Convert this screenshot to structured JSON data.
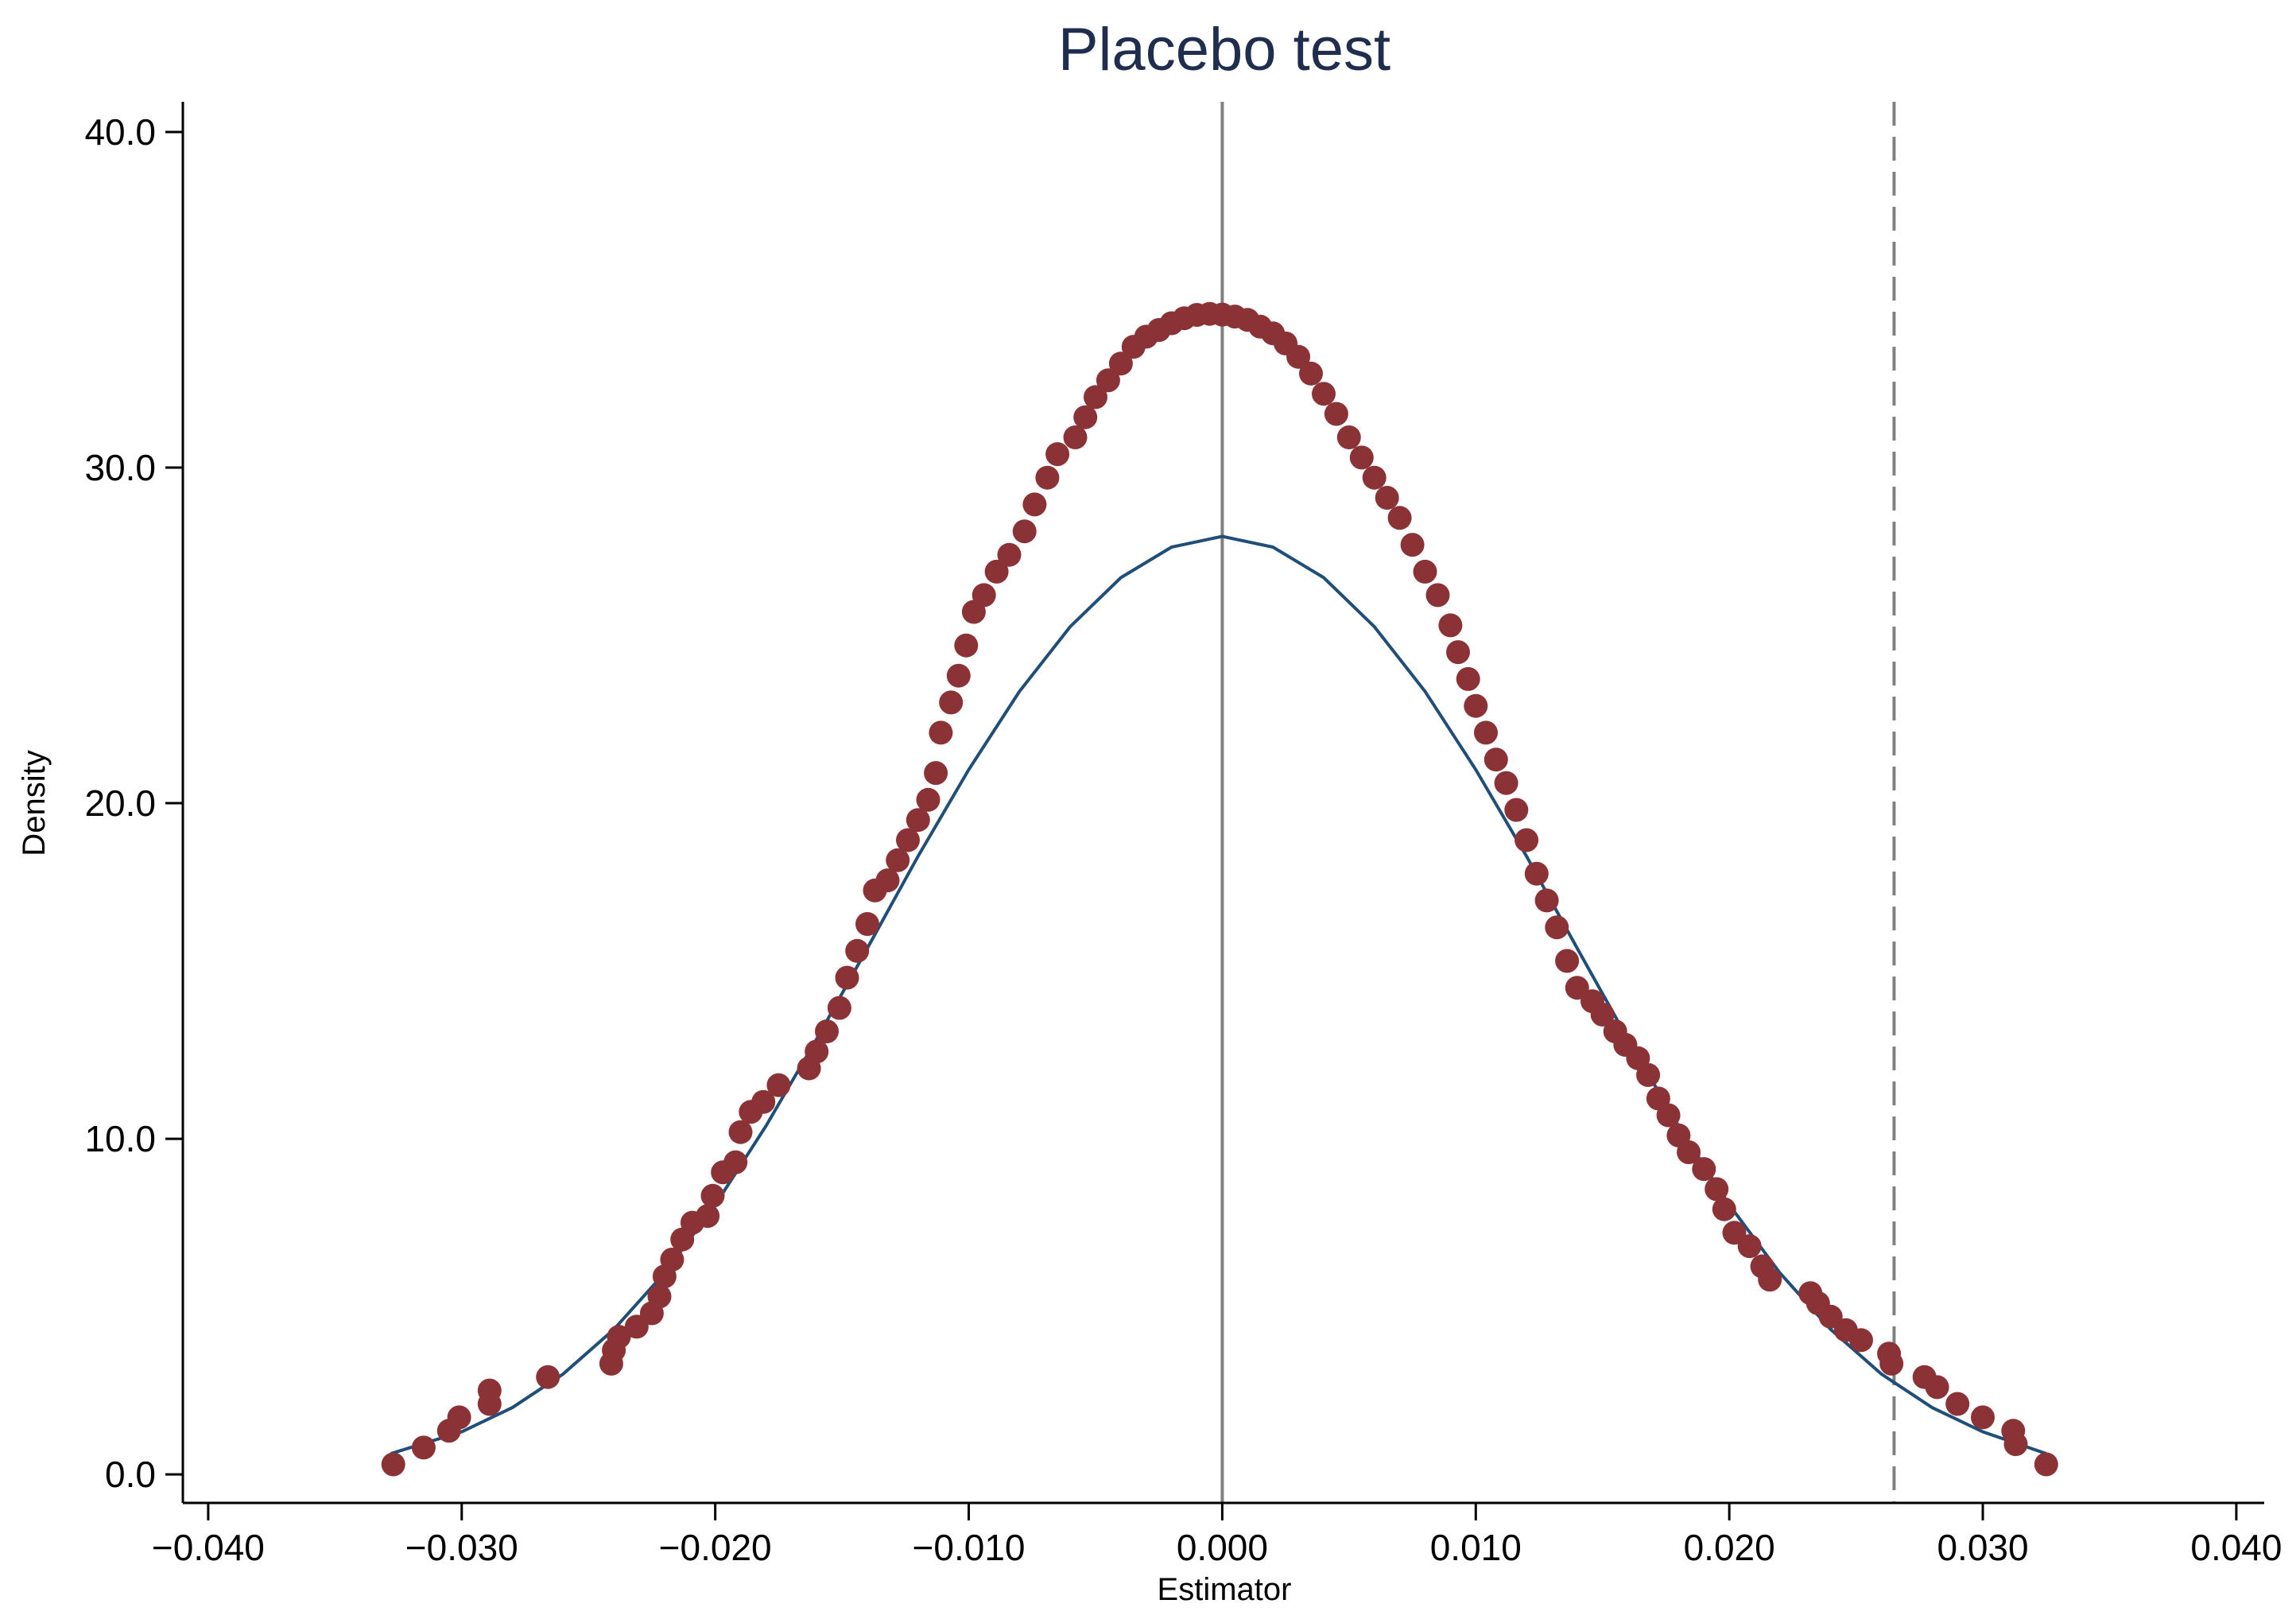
{
  "chart_data": {
    "type": "scatter",
    "title": "Placebo test",
    "xlabel": "Estimator",
    "ylabel": "Density",
    "xlim": [
      -0.041,
      0.0411
    ],
    "ylim": [
      -0.85,
      40.9
    ],
    "xticks": [
      -0.04,
      -0.03,
      -0.02,
      -0.01,
      0.0,
      0.01,
      0.02,
      0.03,
      0.04
    ],
    "xtick_labels": [
      "−0.040",
      "−0.030",
      "−0.020",
      "−0.010",
      "0.000",
      "0.010",
      "0.020",
      "0.030",
      "0.040"
    ],
    "yticks": [
      0,
      10,
      20,
      30,
      40
    ],
    "ytick_labels": [
      "0.0",
      "10.0",
      "20.0",
      "30.0",
      "40.0"
    ],
    "grid": false,
    "legend": "none",
    "reference_lines": [
      {
        "x": 0.0,
        "style": "solid",
        "color": "#808080"
      },
      {
        "x": 0.0265,
        "style": "dashed",
        "color": "#808080"
      }
    ],
    "series": [
      {
        "type": "scatter",
        "color": "#8b3237",
        "points": [
          [
            -0.0327,
            0.3
          ],
          [
            -0.0315,
            0.8
          ],
          [
            -0.0305,
            1.3
          ],
          [
            -0.0301,
            1.7
          ],
          [
            -0.0289,
            2.1
          ],
          [
            -0.0289,
            2.5
          ],
          [
            -0.0266,
            2.9
          ],
          [
            -0.0241,
            3.3
          ],
          [
            -0.024,
            3.7
          ],
          [
            -0.0238,
            4.1
          ],
          [
            -0.0231,
            4.4
          ],
          [
            -0.0225,
            4.8
          ],
          [
            -0.0222,
            5.3
          ],
          [
            -0.022,
            5.9
          ],
          [
            -0.0217,
            6.4
          ],
          [
            -0.0213,
            7.0
          ],
          [
            -0.0209,
            7.5
          ],
          [
            -0.0203,
            7.7
          ],
          [
            -0.0201,
            8.3
          ],
          [
            -0.0197,
            9.0
          ],
          [
            -0.0192,
            9.3
          ],
          [
            -0.019,
            10.2
          ],
          [
            -0.0186,
            10.8
          ],
          [
            -0.0181,
            11.1
          ],
          [
            -0.0175,
            11.6
          ],
          [
            -0.0163,
            12.1
          ],
          [
            -0.016,
            12.6
          ],
          [
            -0.0156,
            13.2
          ],
          [
            -0.0151,
            13.9
          ],
          [
            -0.0148,
            14.8
          ],
          [
            -0.0144,
            15.6
          ],
          [
            -0.014,
            16.4
          ],
          [
            -0.0137,
            17.4
          ],
          [
            -0.0132,
            17.7
          ],
          [
            -0.0128,
            18.3
          ],
          [
            -0.0124,
            18.9
          ],
          [
            -0.012,
            19.5
          ],
          [
            -0.0116,
            20.1
          ],
          [
            -0.0113,
            20.9
          ],
          [
            -0.0111,
            22.1
          ],
          [
            -0.0107,
            23.0
          ],
          [
            -0.0104,
            23.8
          ],
          [
            -0.0101,
            24.7
          ],
          [
            -0.0098,
            25.7
          ],
          [
            -0.0094,
            26.2
          ],
          [
            -0.0089,
            26.9
          ],
          [
            -0.0084,
            27.4
          ],
          [
            -0.0078,
            28.1
          ],
          [
            -0.0074,
            28.9
          ],
          [
            -0.0069,
            29.7
          ],
          [
            -0.0065,
            30.4
          ],
          [
            -0.0058,
            30.9
          ],
          [
            -0.0054,
            31.5
          ],
          [
            -0.005,
            32.1
          ],
          [
            -0.0045,
            32.6
          ],
          [
            -0.004,
            33.1
          ],
          [
            -0.0035,
            33.6
          ],
          [
            -0.003,
            33.9
          ],
          [
            -0.0025,
            34.1
          ],
          [
            -0.002,
            34.3
          ],
          [
            -0.0015,
            34.45
          ],
          [
            -0.001,
            34.55
          ],
          [
            -0.0005,
            34.58
          ],
          [
            0.0,
            34.56
          ],
          [
            0.0005,
            34.5
          ],
          [
            0.001,
            34.4
          ],
          [
            0.0015,
            34.2
          ],
          [
            0.002,
            34.0
          ],
          [
            0.0025,
            33.7
          ],
          [
            0.003,
            33.3
          ],
          [
            0.0035,
            32.8
          ],
          [
            0.004,
            32.2
          ],
          [
            0.0045,
            31.6
          ],
          [
            0.005,
            30.9
          ],
          [
            0.0055,
            30.3
          ],
          [
            0.006,
            29.7
          ],
          [
            0.0065,
            29.1
          ],
          [
            0.007,
            28.5
          ],
          [
            0.0075,
            27.7
          ],
          [
            0.008,
            26.9
          ],
          [
            0.0085,
            26.2
          ],
          [
            0.009,
            25.3
          ],
          [
            0.0093,
            24.5
          ],
          [
            0.0097,
            23.7
          ],
          [
            0.01,
            22.9
          ],
          [
            0.0104,
            22.1
          ],
          [
            0.0108,
            21.3
          ],
          [
            0.0112,
            20.6
          ],
          [
            0.0116,
            19.8
          ],
          [
            0.012,
            18.9
          ],
          [
            0.0124,
            17.9
          ],
          [
            0.0128,
            17.1
          ],
          [
            0.0132,
            16.3
          ],
          [
            0.0136,
            15.3
          ],
          [
            0.014,
            14.5
          ],
          [
            0.0146,
            14.1
          ],
          [
            0.015,
            13.7
          ],
          [
            0.0155,
            13.2
          ],
          [
            0.0159,
            12.8
          ],
          [
            0.0164,
            12.4
          ],
          [
            0.0168,
            11.9
          ],
          [
            0.0172,
            11.2
          ],
          [
            0.0176,
            10.7
          ],
          [
            0.018,
            10.1
          ],
          [
            0.0184,
            9.6
          ],
          [
            0.019,
            9.1
          ],
          [
            0.0195,
            8.5
          ],
          [
            0.0198,
            7.9
          ],
          [
            0.0202,
            7.2
          ],
          [
            0.0208,
            6.8
          ],
          [
            0.0213,
            6.2
          ],
          [
            0.0216,
            5.8
          ],
          [
            0.0232,
            5.4
          ],
          [
            0.0235,
            5.1
          ],
          [
            0.024,
            4.7
          ],
          [
            0.0246,
            4.3
          ],
          [
            0.0252,
            4.0
          ],
          [
            0.0263,
            3.6
          ],
          [
            0.0264,
            3.3
          ],
          [
            0.0277,
            2.9
          ],
          [
            0.0282,
            2.6
          ],
          [
            0.029,
            2.1
          ],
          [
            0.03,
            1.7
          ],
          [
            0.0312,
            1.3
          ],
          [
            0.0313,
            0.9
          ],
          [
            0.0325,
            0.3
          ]
        ]
      },
      {
        "type": "line",
        "color": "#1f4e79",
        "points": [
          [
            -0.0328,
            0.62
          ],
          [
            -0.03,
            1.27
          ],
          [
            -0.028,
            1.99
          ],
          [
            -0.026,
            2.99
          ],
          [
            -0.024,
            4.32
          ],
          [
            -0.022,
            6.0
          ],
          [
            -0.02,
            8.03
          ],
          [
            -0.018,
            10.38
          ],
          [
            -0.016,
            12.97
          ],
          [
            -0.014,
            15.68
          ],
          [
            -0.012,
            18.42
          ],
          [
            -0.01,
            21.0
          ],
          [
            -0.008,
            23.33
          ],
          [
            -0.006,
            25.26
          ],
          [
            -0.004,
            26.72
          ],
          [
            -0.002,
            27.63
          ],
          [
            0.0,
            27.95
          ],
          [
            0.002,
            27.63
          ],
          [
            0.004,
            26.72
          ],
          [
            0.006,
            25.26
          ],
          [
            0.008,
            23.33
          ],
          [
            0.01,
            21.0
          ],
          [
            0.012,
            18.42
          ],
          [
            0.014,
            15.68
          ],
          [
            0.016,
            12.97
          ],
          [
            0.018,
            10.38
          ],
          [
            0.02,
            8.03
          ],
          [
            0.022,
            6.0
          ],
          [
            0.024,
            4.32
          ],
          [
            0.026,
            2.99
          ],
          [
            0.028,
            1.99
          ],
          [
            0.03,
            1.27
          ],
          [
            0.0325,
            0.62
          ]
        ]
      }
    ]
  }
}
